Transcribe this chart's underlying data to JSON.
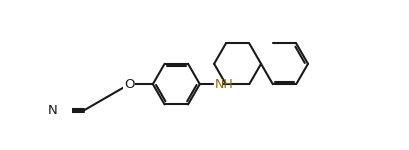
{
  "bg_color": "#ffffff",
  "lc": "#1a1a1a",
  "nh_color": "#8B6914",
  "lw": 1.5,
  "figsize": [
    4.1,
    1.5
  ],
  "dpi": 100,
  "xlim": [
    0.0,
    10.2
  ],
  "ylim": [
    -2.5,
    3.2
  ]
}
